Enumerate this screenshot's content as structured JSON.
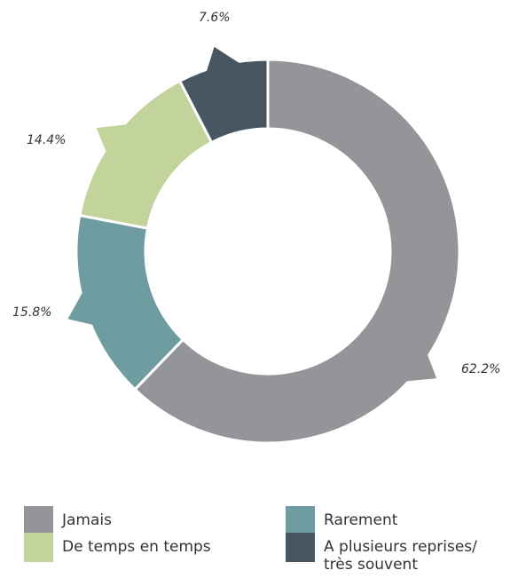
{
  "chart_data": {
    "type": "pie",
    "style": "donut",
    "categories": [
      "Jamais",
      "Rarement",
      "De temps en temps",
      "A plusieurs reprises/ très souvent"
    ],
    "values": [
      62.2,
      15.8,
      14.4,
      7.6
    ],
    "value_labels": [
      "62.2%",
      "15.8%",
      "14.4%",
      "7.6%"
    ],
    "colors": [
      "#939598",
      "#6f9ca0",
      "#c3d39c",
      "#475660"
    ],
    "legend_position": "bottom"
  },
  "legend": {
    "items": [
      {
        "label": "Jamais",
        "color": "#939598"
      },
      {
        "label": "Rarement",
        "color": "#6f9ca0"
      },
      {
        "label": "De temps en temps",
        "color": "#c3d39c"
      },
      {
        "label": "A plusieurs reprises/ très souvent",
        "color": "#475660"
      }
    ]
  }
}
